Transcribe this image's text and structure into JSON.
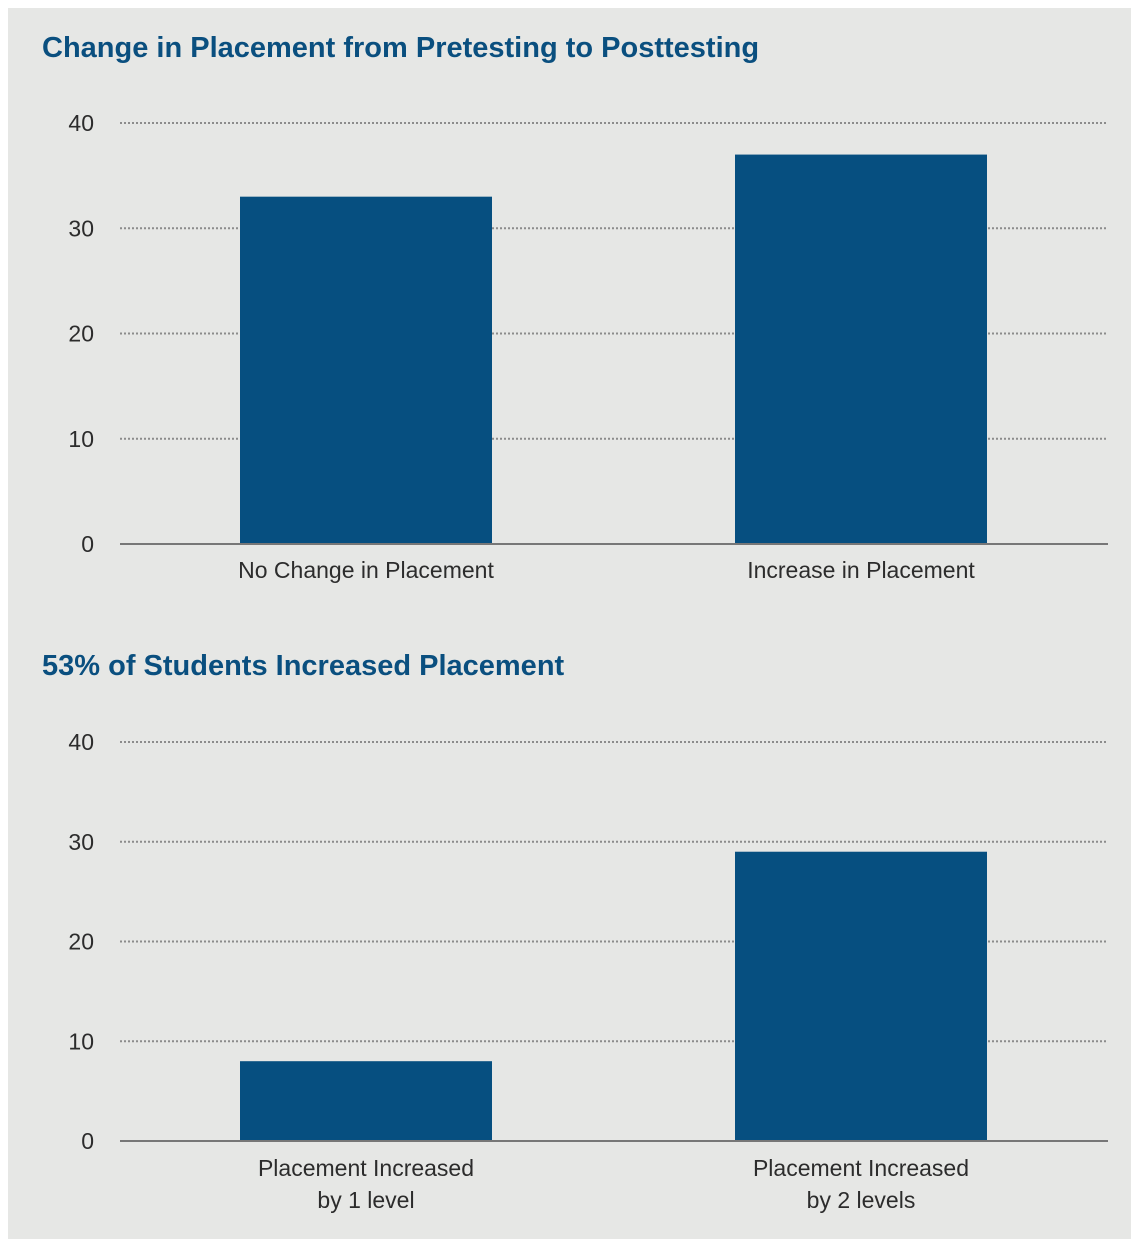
{
  "colors": {
    "panel_background": "#e6e7e5",
    "bar": "#064f80",
    "title": "#0a4f7f",
    "gridline": "#8c8c8c",
    "axis": "#777777",
    "label_text": "#2c2c2c"
  },
  "chart_data": [
    {
      "type": "bar",
      "title": "Change in Placement from Pretesting to Posttesting",
      "categories": [
        [
          "No Change in Placement"
        ],
        [
          "Increase in Placement"
        ]
      ],
      "values": [
        33,
        37
      ],
      "ylim": [
        0,
        40
      ],
      "yticks": [
        0,
        10,
        20,
        30,
        40
      ],
      "grid": true,
      "xlabel": "",
      "ylabel": ""
    },
    {
      "type": "bar",
      "title": "53% of Students Increased Placement",
      "categories": [
        [
          "Placement Increased",
          "by 1 level"
        ],
        [
          "Placement Increased",
          "by 2 levels"
        ]
      ],
      "values": [
        8,
        29
      ],
      "ylim": [
        0,
        40
      ],
      "yticks": [
        0,
        10,
        20,
        30,
        40
      ],
      "grid": true,
      "xlabel": "",
      "ylabel": ""
    }
  ]
}
